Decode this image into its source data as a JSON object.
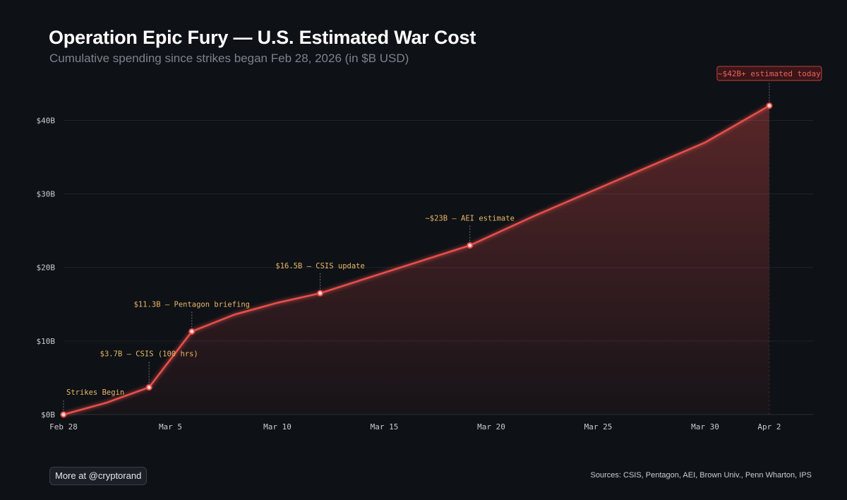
{
  "title": "Operation Epic Fury — U.S. Estimated War Cost",
  "subtitle": "Cumulative spending since strikes began Feb 28, 2026 (in $B USD)",
  "footer": {
    "more_label": "More at @cryptorand",
    "sources": "Sources: CSIS, Pentagon, AEI, Brown Univ., Penn Wharton, IPS"
  },
  "colors": {
    "background": "#0e1116",
    "line": "#e8504c",
    "annotation": "#e8b765",
    "today": "#f0605c"
  },
  "chart_data": {
    "type": "area",
    "x_axis": {
      "type": "date",
      "range": [
        "2026-02-28",
        "2026-04-04"
      ],
      "ticks": [
        {
          "date": "2026-02-28",
          "label": "Feb 28"
        },
        {
          "date": "2026-03-05",
          "label": "Mar 5"
        },
        {
          "date": "2026-03-10",
          "label": "Mar 10"
        },
        {
          "date": "2026-03-15",
          "label": "Mar 15"
        },
        {
          "date": "2026-03-20",
          "label": "Mar 20"
        },
        {
          "date": "2026-03-25",
          "label": "Mar 25"
        },
        {
          "date": "2026-03-30",
          "label": "Mar 30"
        },
        {
          "date": "2026-04-02",
          "label": "Apr 2"
        }
      ]
    },
    "y_axis": {
      "range": [
        0,
        46
      ],
      "ticks": [
        {
          "value": 0,
          "label": "$0B"
        },
        {
          "value": 10,
          "label": "$10B"
        },
        {
          "value": 20,
          "label": "$20B"
        },
        {
          "value": 30,
          "label": "$30B"
        },
        {
          "value": 40,
          "label": "$40B"
        }
      ],
      "grid": true
    },
    "series": [
      {
        "points": [
          {
            "x": "2026-02-28",
            "y": 0
          },
          {
            "x": "2026-03-02",
            "y": 1.6
          },
          {
            "x": "2026-03-04",
            "y": 3.7
          },
          {
            "x": "2026-03-06",
            "y": 11.3
          },
          {
            "x": "2026-03-08",
            "y": 13.6
          },
          {
            "x": "2026-03-10",
            "y": 15.2
          },
          {
            "x": "2026-03-12",
            "y": 16.5
          },
          {
            "x": "2026-03-15",
            "y": 19.3
          },
          {
            "x": "2026-03-19",
            "y": 23.0
          },
          {
            "x": "2026-03-22",
            "y": 27.0
          },
          {
            "x": "2026-03-26",
            "y": 32.0
          },
          {
            "x": "2026-03-30",
            "y": 37.0
          },
          {
            "x": "2026-04-02",
            "y": 42.0
          }
        ]
      }
    ],
    "annotations": [
      {
        "x": "2026-02-28",
        "y": 0,
        "label": "Strikes Begin"
      },
      {
        "x": "2026-03-04",
        "y": 3.7,
        "label": "$3.7B — CSIS (100 hrs)"
      },
      {
        "x": "2026-03-06",
        "y": 11.3,
        "label": "$11.3B — Pentagon briefing"
      },
      {
        "x": "2026-03-12",
        "y": 16.5,
        "label": "$16.5B — CSIS update"
      },
      {
        "x": "2026-03-19",
        "y": 23.0,
        "label": "~$23B — AEI estimate"
      }
    ],
    "highlight": {
      "x": "2026-04-02",
      "y": 42.0,
      "label": "~$42B+ estimated today"
    }
  }
}
